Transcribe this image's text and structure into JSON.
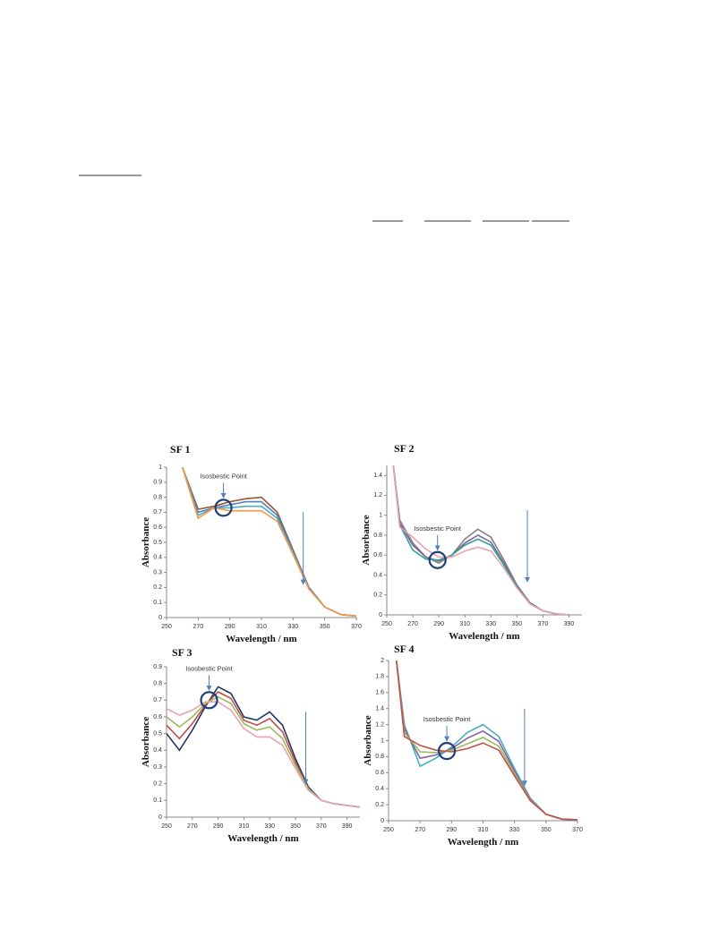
{
  "chart_data": [
    {
      "type": "line",
      "title": "SF 1",
      "x_label": "Wavelength / nm",
      "y_label": "Absorbance",
      "annotation": "Isosbestic Point",
      "isosbestic": {
        "x": 286,
        "y": 0.73
      },
      "xlim": [
        250,
        370
      ],
      "xticks": [
        250,
        270,
        290,
        310,
        330,
        350,
        370
      ],
      "ylim": [
        0,
        1
      ],
      "yticks": [
        0,
        0.1,
        0.2,
        0.3,
        0.4,
        0.5,
        0.6,
        0.7,
        0.8,
        0.9,
        1
      ],
      "x": [
        260,
        270,
        280,
        290,
        300,
        310,
        320,
        330,
        340,
        350,
        360,
        370
      ],
      "series": [
        {
          "color": "#a0522d",
          "values": [
            1.0,
            0.72,
            0.74,
            0.77,
            0.79,
            0.8,
            0.7,
            0.45,
            0.2,
            0.07,
            0.02,
            0.01
          ]
        },
        {
          "color": "#4f81bd",
          "values": [
            1.0,
            0.7,
            0.73,
            0.75,
            0.77,
            0.77,
            0.68,
            0.44,
            0.2,
            0.07,
            0.02,
            0.01
          ]
        },
        {
          "color": "#4bacc6",
          "values": [
            1.0,
            0.68,
            0.73,
            0.73,
            0.74,
            0.74,
            0.66,
            0.43,
            0.19,
            0.07,
            0.02,
            0.01
          ]
        },
        {
          "color": "#f79646",
          "values": [
            1.0,
            0.66,
            0.73,
            0.71,
            0.71,
            0.71,
            0.64,
            0.42,
            0.19,
            0.07,
            0.02,
            0.01
          ]
        }
      ]
    },
    {
      "type": "line",
      "title": "SF 2",
      "x_label": "Wavelength / nm",
      "y_label": "Absorbance",
      "annotation": "Isosbestic Point",
      "isosbestic": {
        "x": 289,
        "y": 0.55
      },
      "xlim": [
        250,
        400
      ],
      "xticks": [
        250,
        270,
        290,
        310,
        330,
        350,
        370,
        390
      ],
      "ylim": [
        0,
        1.5
      ],
      "yticks": [
        0,
        0.2,
        0.4,
        0.6,
        0.8,
        1,
        1.2,
        1.4
      ],
      "x": [
        255,
        260,
        270,
        280,
        290,
        300,
        310,
        320,
        330,
        340,
        350,
        360,
        370,
        380,
        390
      ],
      "series": [
        {
          "color": "#808080",
          "values": [
            1.5,
            0.95,
            0.72,
            0.58,
            0.52,
            0.6,
            0.76,
            0.86,
            0.78,
            0.55,
            0.3,
            0.12,
            0.04,
            0.01,
            0.0
          ]
        },
        {
          "color": "#8064a2",
          "values": [
            1.5,
            0.92,
            0.7,
            0.58,
            0.54,
            0.6,
            0.72,
            0.8,
            0.73,
            0.52,
            0.29,
            0.12,
            0.04,
            0.01,
            0.0
          ]
        },
        {
          "color": "#31a38f",
          "values": [
            1.5,
            0.9,
            0.65,
            0.56,
            0.55,
            0.6,
            0.7,
            0.76,
            0.7,
            0.5,
            0.28,
            0.11,
            0.04,
            0.01,
            0.0
          ]
        },
        {
          "color": "#e6a3b0",
          "values": [
            1.5,
            0.88,
            0.78,
            0.66,
            0.58,
            0.58,
            0.64,
            0.68,
            0.64,
            0.47,
            0.27,
            0.11,
            0.04,
            0.01,
            0.0
          ]
        }
      ]
    },
    {
      "type": "line",
      "title": "SF 3",
      "x_label": "Wavelength / nm",
      "y_label": "Absorbance",
      "annotation": "Isosbestic Point",
      "isosbestic": {
        "x": 283,
        "y": 0.7
      },
      "xlim": [
        250,
        400
      ],
      "xticks": [
        250,
        270,
        290,
        310,
        330,
        350,
        370,
        390
      ],
      "ylim": [
        0,
        0.9
      ],
      "yticks": [
        0,
        0.1,
        0.2,
        0.3,
        0.4,
        0.5,
        0.6,
        0.7,
        0.8,
        0.9
      ],
      "x": [
        250,
        260,
        270,
        280,
        290,
        300,
        310,
        320,
        330,
        340,
        350,
        360,
        370,
        380,
        390,
        400
      ],
      "series": [
        {
          "color": "#1f3864",
          "values": [
            0.5,
            0.4,
            0.52,
            0.66,
            0.78,
            0.74,
            0.6,
            0.58,
            0.63,
            0.55,
            0.35,
            0.18,
            0.1,
            0.08,
            0.07,
            0.06
          ]
        },
        {
          "color": "#c0504d",
          "values": [
            0.55,
            0.47,
            0.56,
            0.67,
            0.75,
            0.71,
            0.58,
            0.55,
            0.59,
            0.51,
            0.33,
            0.17,
            0.1,
            0.08,
            0.07,
            0.06
          ]
        },
        {
          "color": "#9bbb59",
          "values": [
            0.6,
            0.54,
            0.6,
            0.68,
            0.72,
            0.68,
            0.56,
            0.52,
            0.54,
            0.47,
            0.31,
            0.17,
            0.1,
            0.08,
            0.07,
            0.06
          ]
        },
        {
          "color": "#e6a3b0",
          "values": [
            0.65,
            0.61,
            0.64,
            0.69,
            0.69,
            0.64,
            0.53,
            0.48,
            0.48,
            0.43,
            0.29,
            0.16,
            0.1,
            0.08,
            0.07,
            0.06
          ]
        }
      ]
    },
    {
      "type": "line",
      "title": "SF 4",
      "x_label": "Wavelength / nm",
      "y_label": "Absorbance",
      "annotation": "Isosbestic Point",
      "isosbestic": {
        "x": 287,
        "y": 0.87
      },
      "xlim": [
        250,
        370
      ],
      "xticks": [
        250,
        270,
        290,
        310,
        330,
        350,
        370
      ],
      "ylim": [
        0,
        2
      ],
      "yticks": [
        0,
        0.2,
        0.4,
        0.6,
        0.8,
        1,
        1.2,
        1.4,
        1.6,
        1.8,
        2
      ],
      "x": [
        255,
        260,
        270,
        280,
        290,
        300,
        310,
        320,
        330,
        340,
        350,
        360,
        370
      ],
      "series": [
        {
          "color": "#4bacc6",
          "values": [
            2.0,
            1.2,
            0.68,
            0.78,
            0.92,
            1.1,
            1.2,
            1.05,
            0.65,
            0.28,
            0.08,
            0.02,
            0.01
          ]
        },
        {
          "color": "#8064a2",
          "values": [
            2.0,
            1.15,
            0.78,
            0.82,
            0.9,
            1.03,
            1.12,
            0.99,
            0.62,
            0.27,
            0.08,
            0.02,
            0.01
          ]
        },
        {
          "color": "#9bbb59",
          "values": [
            2.0,
            1.1,
            0.86,
            0.85,
            0.88,
            0.96,
            1.04,
            0.93,
            0.59,
            0.26,
            0.08,
            0.02,
            0.01
          ]
        },
        {
          "color": "#c0504d",
          "values": [
            2.0,
            1.05,
            0.94,
            0.88,
            0.86,
            0.9,
            0.97,
            0.88,
            0.56,
            0.25,
            0.08,
            0.02,
            0.01
          ]
        }
      ]
    }
  ]
}
